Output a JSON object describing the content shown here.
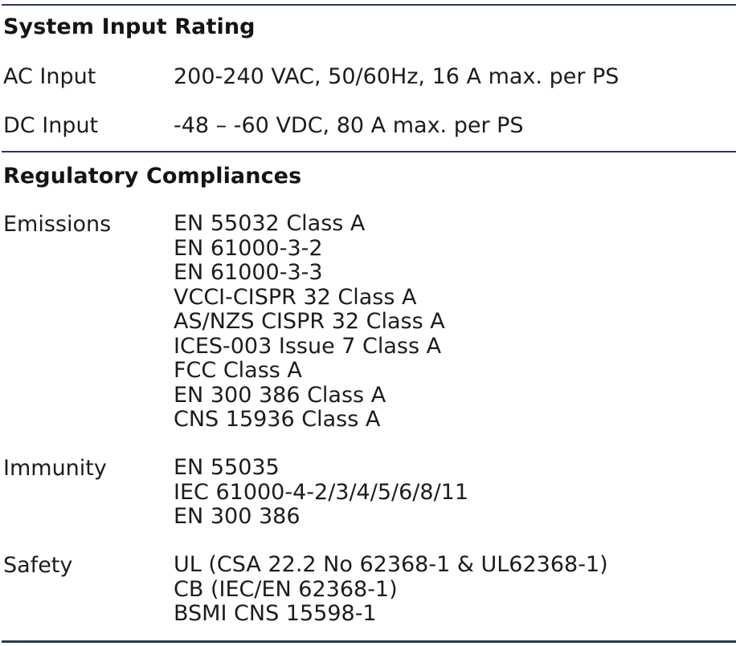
{
  "system_input_rating": {
    "title": "System Input Rating",
    "rows": [
      {
        "label": "AC Input",
        "value": "200-240 VAC, 50/60Hz, 16 A max. per PS"
      },
      {
        "label": "DC Input",
        "value": "-48 – -60 VDC, 80 A max. per PS"
      }
    ]
  },
  "regulatory_compliances": {
    "title": "Regulatory Compliances",
    "emissions": {
      "label": "Emissions",
      "items": [
        "EN 55032 Class A",
        "EN 61000-3-2",
        "EN 61000-3-3",
        "VCCI-CISPR 32 Class A",
        "AS/NZS CISPR 32 Class A",
        "ICES-003 Issue 7 Class A",
        "FCC Class A",
        "EN 300 386 Class A",
        "CNS 15936 Class A"
      ]
    },
    "immunity": {
      "label": "Immunity",
      "items": [
        "EN 55035",
        "IEC 61000-4-2/3/4/5/6/8/11",
        "EN 300 386"
      ]
    },
    "safety": {
      "label": "Safety",
      "items": [
        "UL (CSA 22.2 No 62368-1 & UL62368-1)",
        "CB (IEC/EN 62368-1)",
        "BSMI CNS 15598-1"
      ]
    }
  }
}
